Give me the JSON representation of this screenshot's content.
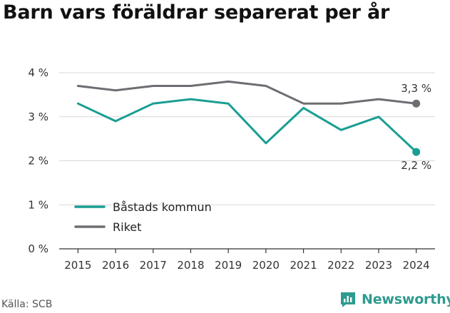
{
  "title": "Barn vars föräldrar separerat per år",
  "source": "Källa: SCB",
  "brand": "Newsworthy",
  "chart_data": {
    "type": "line",
    "title": "Barn vars föräldrar separerat per år",
    "x": [
      "2015",
      "2016",
      "2017",
      "2018",
      "2019",
      "2020",
      "2021",
      "2022",
      "2023",
      "2024"
    ],
    "yticks": [
      "0 %",
      "1 %",
      "2 %",
      "3 %",
      "4 %"
    ],
    "ylim": [
      0,
      4
    ],
    "grid": true,
    "legend_position": "lower-left",
    "series": [
      {
        "name": "Båstads kommun",
        "color": "#1a9e93",
        "values": [
          3.3,
          2.9,
          3.3,
          3.4,
          3.3,
          2.4,
          3.2,
          2.7,
          3.0,
          2.2
        ],
        "end_label": "2,2 %"
      },
      {
        "name": "Riket",
        "color": "#6d6d72",
        "values": [
          3.7,
          3.6,
          3.7,
          3.7,
          3.8,
          3.7,
          3.3,
          3.3,
          3.4,
          3.3
        ],
        "end_label": "3,3 %"
      }
    ]
  },
  "colors": {
    "grid": "#d8d8d8",
    "axis": "#333333",
    "brand": "#2e9b8f"
  }
}
